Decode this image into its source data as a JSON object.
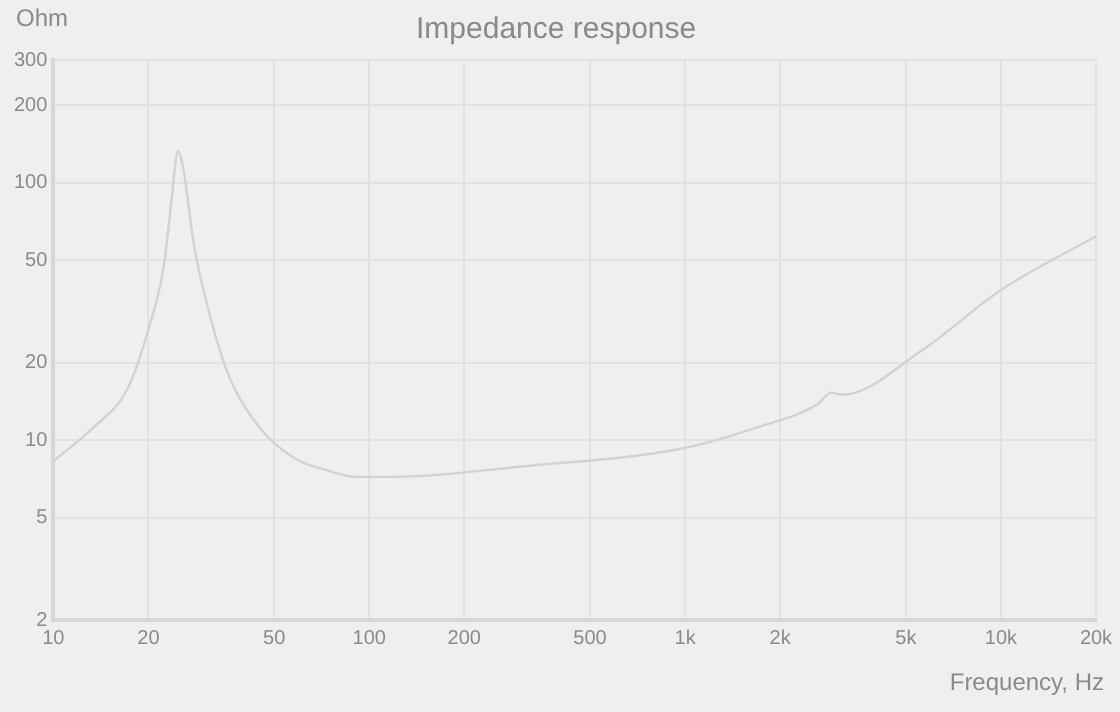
{
  "chart_data": {
    "type": "line",
    "title": "Impedance response",
    "xlabel": "Frequency, Hz",
    "ylabel": "Ohm",
    "log": "xy",
    "grid": true,
    "xlim": [
      10,
      20000
    ],
    "ylim": [
      2,
      300
    ],
    "xticks": [
      10,
      20,
      50,
      100,
      200,
      500,
      {
        "value": 1000,
        "label": "1k"
      },
      {
        "value": 2000,
        "label": "2k"
      },
      {
        "value": 5000,
        "label": "5k"
      },
      {
        "value": 10000,
        "label": "10k"
      },
      {
        "value": 20000,
        "label": "20k"
      }
    ],
    "yticks": [
      2,
      5,
      10,
      20,
      50,
      100,
      200,
      300
    ],
    "series": [
      {
        "color": "#d2d2d2",
        "x": [
          10,
          13.4,
          17.2,
          20,
          22.4,
          23.8,
          24.4,
          24.8,
          25.3,
          25.9,
          27.9,
          31,
          35.8,
          45,
          58,
          74.5,
          90,
          121,
          304,
          990,
          1690,
          2630,
          2900,
          3140,
          5700,
          9900,
          20000
        ],
        "values": [
          8.3,
          11.2,
          15.9,
          27,
          48,
          92,
          122,
          133,
          126,
          110,
          57,
          32,
          18,
          11.2,
          8.5,
          7.6,
          7.2,
          7.2,
          7.9,
          9.3,
          11.2,
          13.8,
          15.3,
          15,
          22.6,
          38,
          62
        ]
      }
    ]
  }
}
